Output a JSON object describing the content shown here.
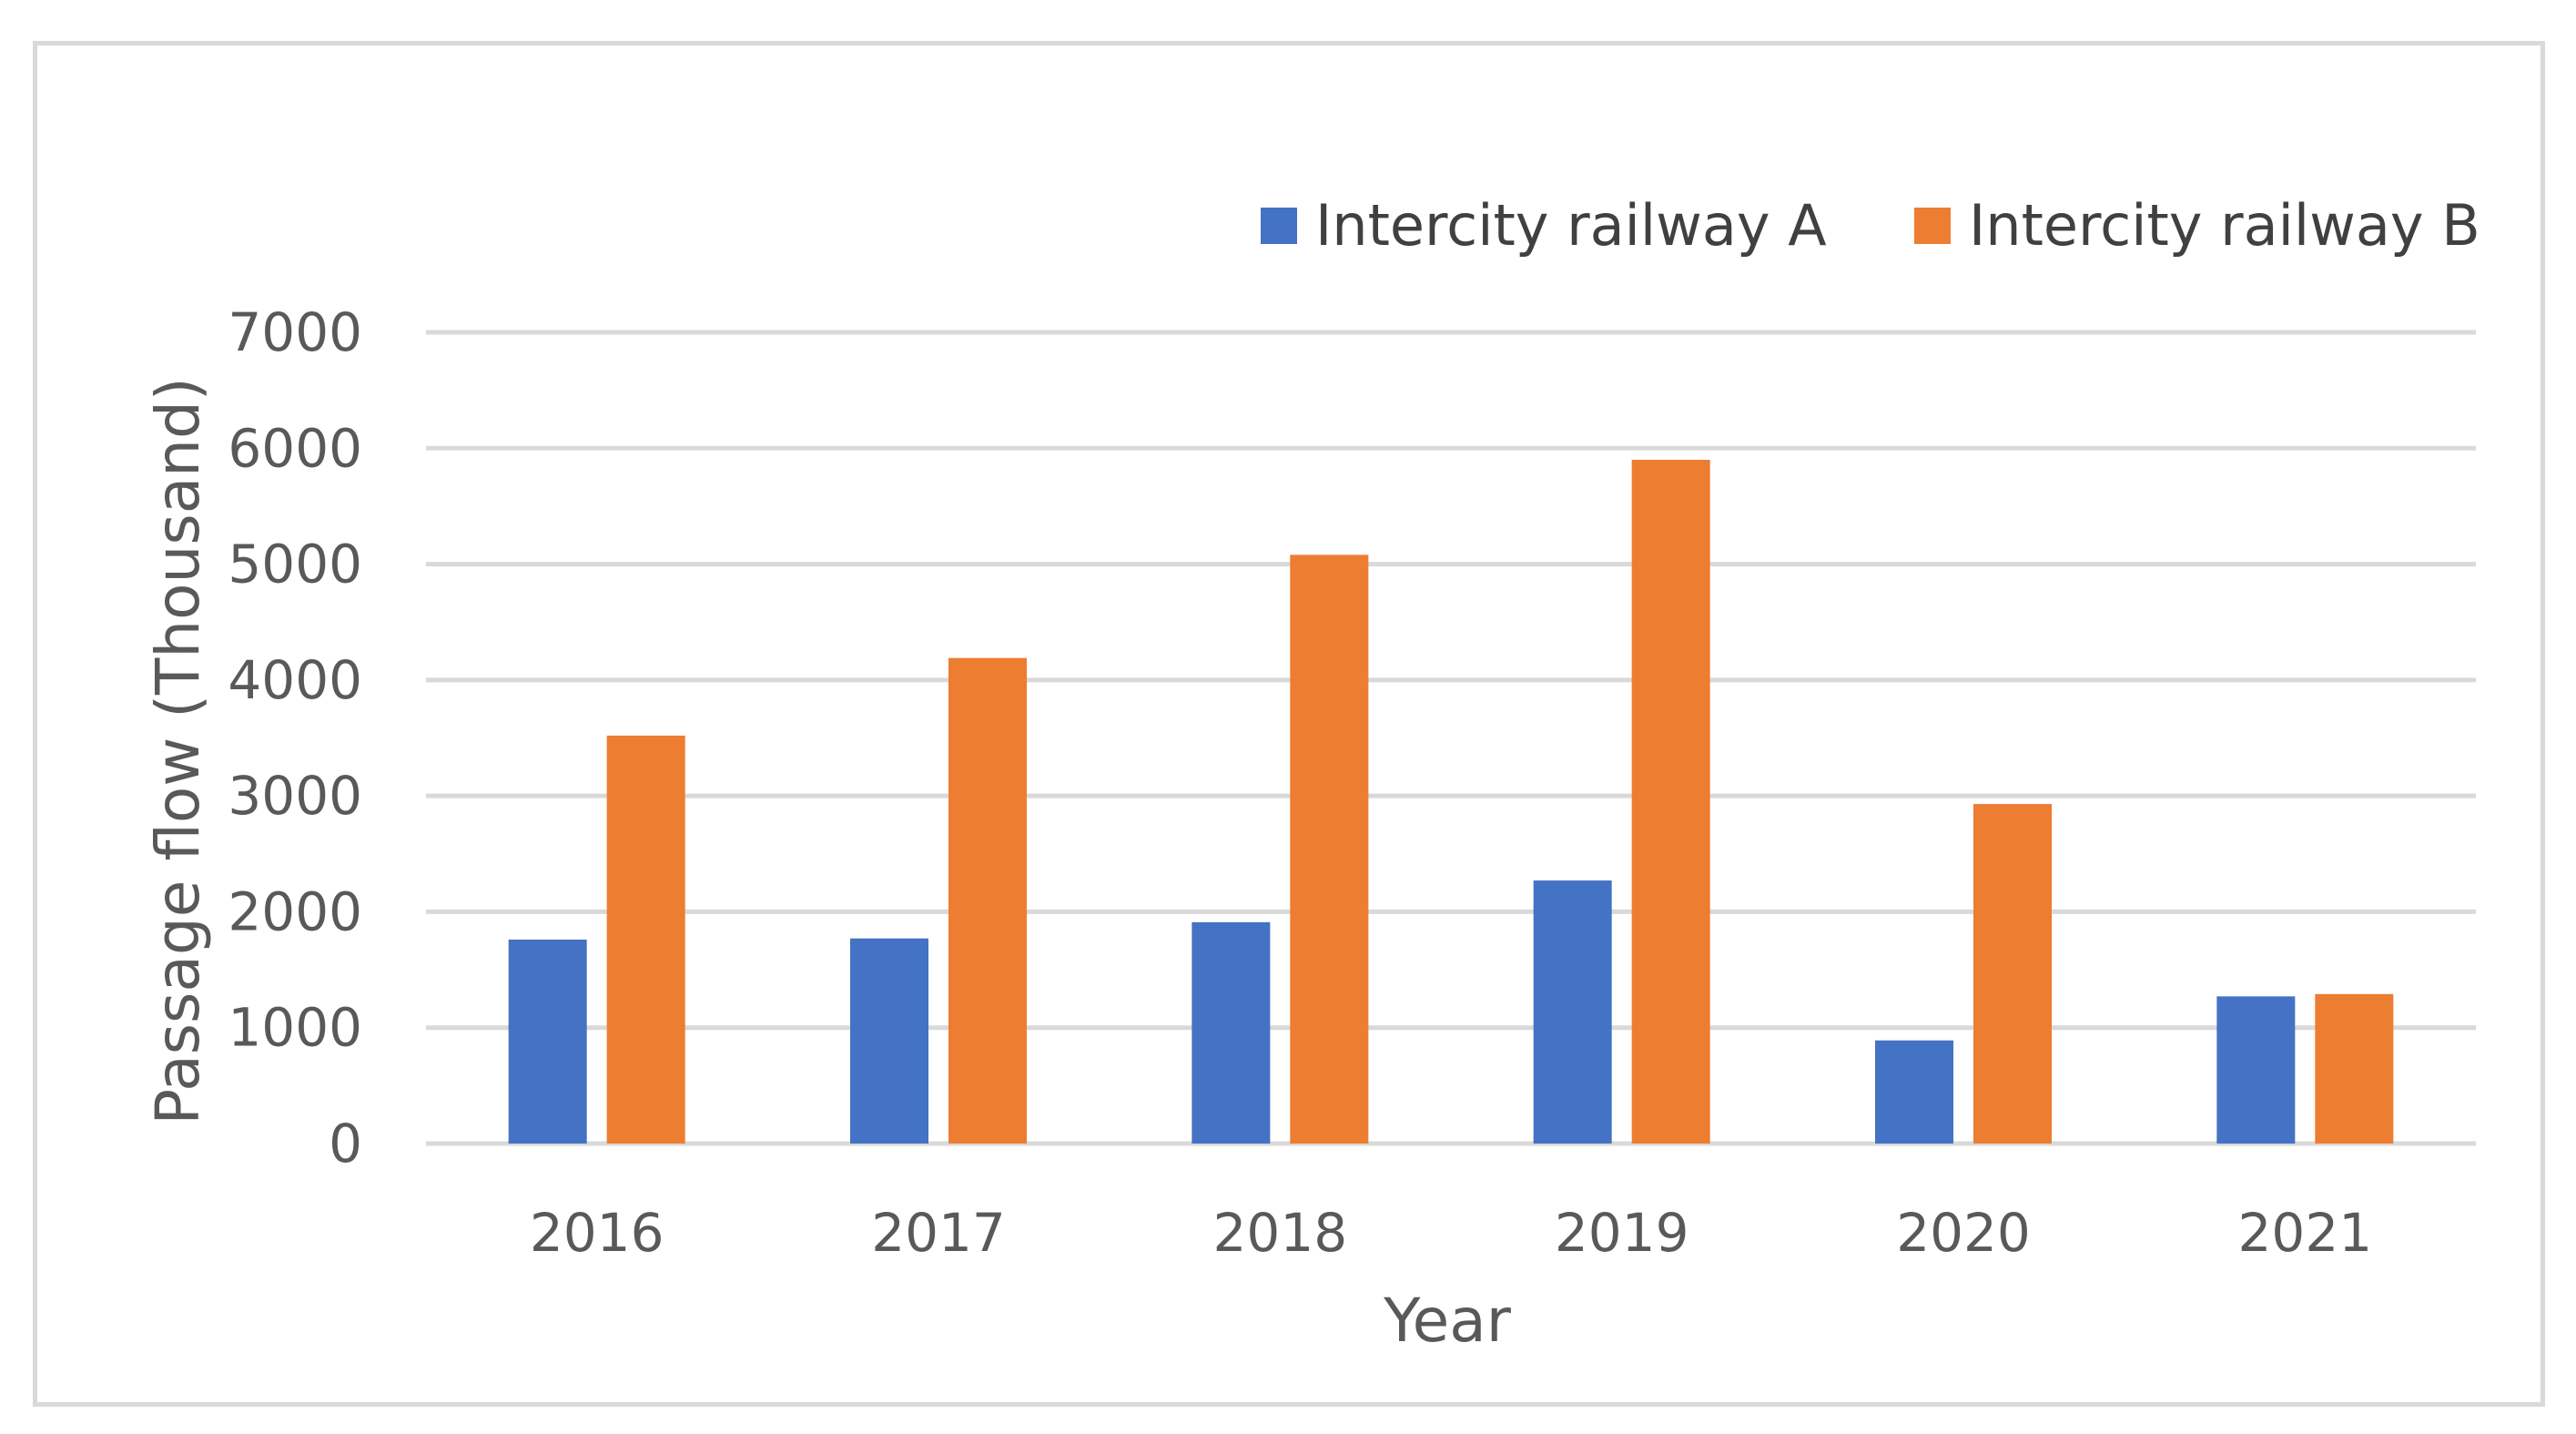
{
  "chart_data": {
    "type": "bar",
    "title": "",
    "xlabel": "Year",
    "ylabel": "Passage flow (Thousand)",
    "categories": [
      "2016",
      "2017",
      "2018",
      "2019",
      "2020",
      "2021"
    ],
    "series": [
      {
        "name": "Intercity railway A",
        "color": "#4472c4",
        "values": [
          1760,
          1770,
          1910,
          2270,
          890,
          1270
        ]
      },
      {
        "name": "Intercity railway B",
        "color": "#ed7d31",
        "values": [
          3520,
          4190,
          5080,
          5900,
          2930,
          1290
        ]
      }
    ],
    "ylim": [
      0,
      7000
    ],
    "yticks": [
      "0",
      "1000",
      "2000",
      "3000",
      "4000",
      "5000",
      "6000",
      "7000"
    ],
    "grid": true,
    "legend_position": "top-right",
    "gridline_color": "#d9d9d9"
  }
}
